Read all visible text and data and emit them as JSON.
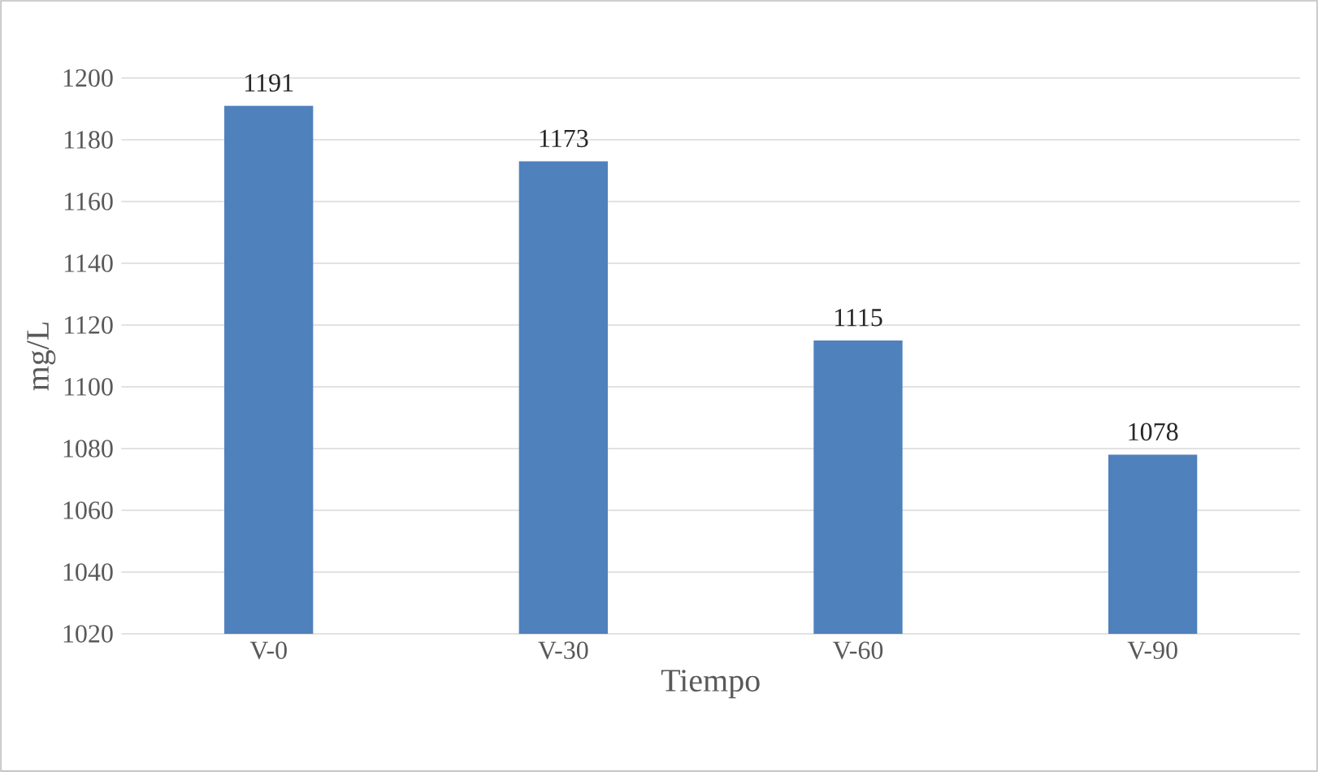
{
  "chart_data": {
    "type": "bar",
    "xlabel": "Tiempo",
    "ylabel": "mg/L",
    "categories": [
      "V-0",
      "V-30",
      "V-60",
      "V-90"
    ],
    "values": [
      1191,
      1173,
      1115,
      1078
    ],
    "color": "#4f81bd",
    "ylim": [
      1020,
      1200
    ],
    "yticks": [
      1020,
      1040,
      1060,
      1080,
      1100,
      1120,
      1140,
      1160,
      1180,
      1200
    ],
    "grid": "y",
    "data_labels": true
  }
}
